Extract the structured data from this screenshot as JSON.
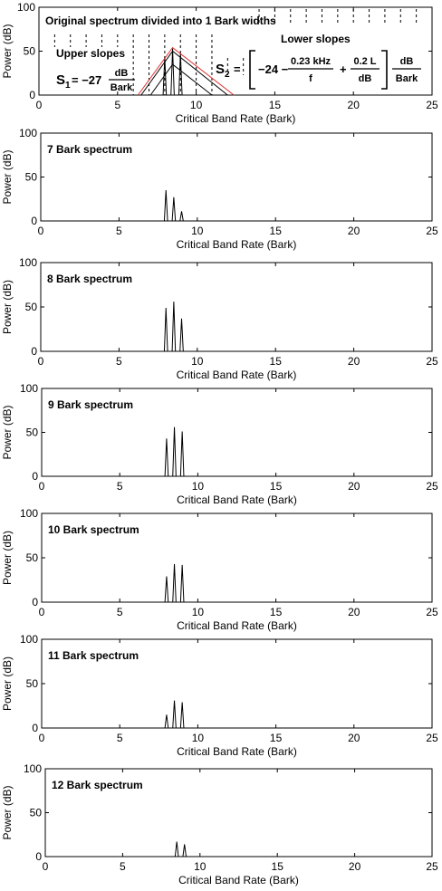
{
  "chart_data": [
    {
      "type": "line",
      "title": "Original spectrum divided into 1 Bark widths",
      "xlabel": "Critical Band Rate (Bark)",
      "ylabel": "Power (dB)",
      "xlim": [
        0,
        25
      ],
      "ylim": [
        0,
        100
      ],
      "xticks": [
        0,
        5,
        10,
        15,
        20,
        25
      ],
      "yticks": [
        0,
        50,
        100
      ],
      "grid": false,
      "bark_boundaries": [
        1,
        2,
        3,
        4,
        5,
        6,
        7,
        8,
        9,
        10,
        11,
        12,
        13,
        14,
        15,
        16,
        17,
        18,
        19,
        20,
        21,
        22,
        23,
        24
      ],
      "spectral_lines": [
        {
          "x": 8.0,
          "y": 43
        },
        {
          "x": 8.5,
          "y": 53
        },
        {
          "x": 9.0,
          "y": 48
        }
      ],
      "slope_series": [
        {
          "color": "#e03030",
          "points": [
            [
              6.3,
              0
            ],
            [
              8.5,
              54
            ],
            [
              12.4,
              0
            ]
          ]
        },
        {
          "color": "#000000",
          "points": [
            [
              6.5,
              0
            ],
            [
              8.5,
              50
            ],
            [
              12.0,
              0
            ]
          ]
        },
        {
          "color": "#000000",
          "points": [
            [
              7.1,
              0
            ],
            [
              8.5,
              35
            ],
            [
              11.0,
              0
            ]
          ]
        }
      ],
      "annotations": {
        "upper_label": "Upper slopes",
        "lower_label": "Lower slopes",
        "s1_lhs": "S",
        "s1_sub": "1",
        "s1_eq": "= −27",
        "s1_num": "dB",
        "s1_den": "Bark",
        "s2_lhs": "S",
        "s2_sub": "2",
        "s2_eq": "=",
        "s2_a": "−24 −",
        "s2_f1_num": "0.23 kHz",
        "s2_f1_den": "f",
        "s2_plus": "+",
        "s2_f2_num": "0.2 L",
        "s2_f2_den": "dB",
        "s2_unit_num": "dB",
        "s2_unit_den": "Bark"
      }
    },
    {
      "type": "line",
      "title": "7 Bark spectrum",
      "xlabel": "Critical Band Rate (Bark)",
      "ylabel": "Power (dB)",
      "xlim": [
        0,
        25
      ],
      "ylim": [
        0,
        100
      ],
      "xticks": [
        0,
        5,
        10,
        15,
        20,
        25
      ],
      "yticks": [
        0,
        50,
        100
      ],
      "grid": false,
      "spectral_lines": [
        {
          "x": 8.0,
          "y": 35
        },
        {
          "x": 8.5,
          "y": 27
        },
        {
          "x": 9.0,
          "y": 11
        }
      ]
    },
    {
      "type": "line",
      "title": "8 Bark spectrum",
      "xlabel": "Critical Band Rate (Bark)",
      "ylabel": "Power (dB)",
      "xlim": [
        0,
        25
      ],
      "ylim": [
        0,
        100
      ],
      "xticks": [
        0,
        5,
        10,
        15,
        20,
        25
      ],
      "yticks": [
        0,
        50,
        100
      ],
      "grid": false,
      "spectral_lines": [
        {
          "x": 8.0,
          "y": 49
        },
        {
          "x": 8.5,
          "y": 56
        },
        {
          "x": 9.0,
          "y": 37
        }
      ]
    },
    {
      "type": "line",
      "title": "9 Bark spectrum",
      "xlabel": "Critical Band Rate (Bark)",
      "ylabel": "Power (dB)",
      "xlim": [
        0,
        25
      ],
      "ylim": [
        0,
        100
      ],
      "xticks": [
        0,
        5,
        10,
        15,
        20,
        25
      ],
      "yticks": [
        0,
        50,
        100
      ],
      "grid": false,
      "spectral_lines": [
        {
          "x": 8.0,
          "y": 43
        },
        {
          "x": 8.5,
          "y": 56
        },
        {
          "x": 9.0,
          "y": 51
        }
      ]
    },
    {
      "type": "line",
      "title": "10 Bark spectrum",
      "xlabel": "Critical Band Rate (Bark)",
      "ylabel": "Power (dB)",
      "xlim": [
        0,
        25
      ],
      "ylim": [
        0,
        100
      ],
      "xticks": [
        0,
        5,
        10,
        15,
        20,
        25
      ],
      "yticks": [
        0,
        50,
        100
      ],
      "grid": false,
      "spectral_lines": [
        {
          "x": 8.0,
          "y": 29
        },
        {
          "x": 8.5,
          "y": 43
        },
        {
          "x": 9.0,
          "y": 42
        }
      ]
    },
    {
      "type": "line",
      "title": "11 Bark spectrum",
      "xlabel": "Critical Band Rate (Bark)",
      "ylabel": "Power (dB)",
      "xlim": [
        0,
        25
      ],
      "ylim": [
        0,
        100
      ],
      "xticks": [
        0,
        5,
        10,
        15,
        20,
        25
      ],
      "yticks": [
        0,
        50,
        100
      ],
      "grid": false,
      "spectral_lines": [
        {
          "x": 8.0,
          "y": 15
        },
        {
          "x": 8.5,
          "y": 31
        },
        {
          "x": 9.0,
          "y": 29
        }
      ]
    },
    {
      "type": "line",
      "title": "12 Bark spectrum",
      "xlabel": "Critical Band Rate (Bark)",
      "ylabel": "Power (dB)",
      "xlim": [
        0,
        25
      ],
      "ylim": [
        0,
        100
      ],
      "xticks": [
        0,
        5,
        10,
        15,
        20,
        25
      ],
      "yticks": [
        0,
        50,
        100
      ],
      "grid": false,
      "spectral_lines": [
        {
          "x": 8.5,
          "y": 17
        },
        {
          "x": 9.0,
          "y": 14
        }
      ]
    }
  ]
}
